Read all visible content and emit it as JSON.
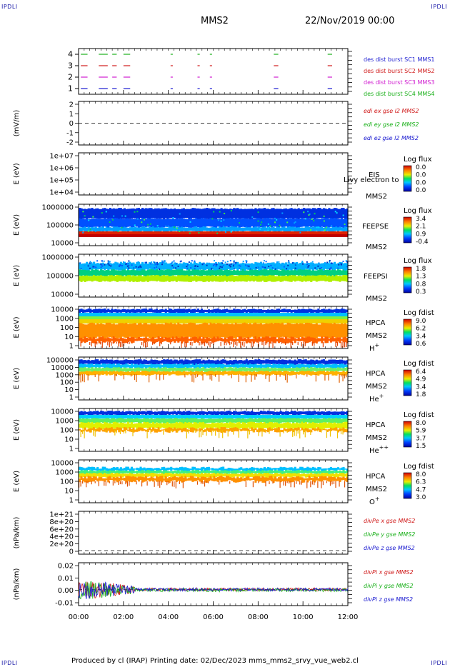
{
  "corners": {
    "tl": "IPDLI",
    "tr": "IPDLI",
    "bl": "IPDLI",
    "br": "IPDLI"
  },
  "header": {
    "spacecraft": "MMS2",
    "date": "22/Nov/2019 00:00"
  },
  "footer": {
    "text": "Produced by cl (IRAP)   Printing date: 02/Dec/2023   mms_mms2_srvy_vue_web2.cl"
  },
  "chart_data": [
    {
      "type": "scatter",
      "panel": "burst availability",
      "ylim": [
        0.5,
        4.5
      ],
      "y_ticks": [
        "1",
        "2",
        "3",
        "4"
      ],
      "series": [
        {
          "name": "des dist burst SC1 MMS1",
          "color": "#1a1ad0",
          "y": 1
        },
        {
          "name": "des dist burst SC2 MMS2",
          "color": "#d01a1a",
          "y": 3
        },
        {
          "name": "des dist burst SC3 MMS3",
          "color": "#d01ad0",
          "y": 2
        },
        {
          "name": "des dist burst SC4 MMS4",
          "color": "#1ab01a",
          "y": 4
        }
      ],
      "intervals_hours": [
        [
          0.1,
          0.4
        ],
        [
          0.9,
          1.3
        ],
        [
          1.5,
          1.7
        ],
        [
          2.0,
          2.3
        ],
        [
          4.1,
          4.2
        ],
        [
          5.3,
          5.4
        ],
        [
          5.85,
          5.95
        ],
        [
          8.7,
          8.9
        ],
        [
          11.1,
          11.3
        ]
      ]
    },
    {
      "type": "line",
      "panel": "edi",
      "ylabel": "(mV/m)",
      "ylim": [
        -2.5,
        2.5
      ],
      "y_ticks": [
        "2",
        "1",
        "0",
        "-1",
        "-2"
      ],
      "series": [
        {
          "name": "edi ex gse l2 MMS2",
          "color": "#d01a1a"
        },
        {
          "name": "edi ey gse l2 MMS2",
          "color": "#1ab01a"
        },
        {
          "name": "edi ez gse l2 MMS2",
          "color": "#1a1ad0"
        }
      ]
    },
    {
      "type": "heatmap",
      "panel": "EIS",
      "ylabel": "E (eV)",
      "y_ticks": [
        "1e+07",
        "1e+06",
        "1e+05",
        "1e+04"
      ],
      "labels": [
        "EIS",
        "MMS2"
      ],
      "overlay_text": "Livy electron to",
      "colorbar": {
        "title": "Log flux",
        "ticks": [
          "0.0",
          "0.0",
          "0.0",
          "0.0"
        ]
      }
    },
    {
      "type": "heatmap",
      "panel": "FEEPSE",
      "ylabel": "E (eV)",
      "y_ticks": [
        "1000000",
        "100000",
        "10000"
      ],
      "labels": [
        "FEEPSE",
        "MMS2"
      ],
      "colorbar": {
        "title": "Log flux",
        "ticks": [
          "3.4",
          "2.1",
          "0.9",
          "-0.4"
        ]
      }
    },
    {
      "type": "heatmap",
      "panel": "FEEPSI",
      "ylabel": "E (eV)",
      "y_ticks": [
        "1000000",
        "100000",
        "10000"
      ],
      "labels": [
        "FEEPSI",
        "MMS2"
      ],
      "colorbar": {
        "title": "Log flux",
        "ticks": [
          "1.8",
          "1.3",
          "0.8",
          "0.3"
        ]
      }
    },
    {
      "type": "heatmap",
      "panel": "HPCA H+",
      "ylabel": "E (eV)",
      "y_ticks": [
        "10000",
        "1000",
        "100",
        "10",
        "1"
      ],
      "labels": [
        "HPCA",
        "MMS2",
        "H"
      ],
      "species_sup": "+",
      "colorbar": {
        "title": "Log fdist",
        "ticks": [
          "9.0",
          "6.2",
          "3.4",
          "0.6"
        ]
      }
    },
    {
      "type": "heatmap",
      "panel": "HPCA He+",
      "ylabel": "E (eV)",
      "y_ticks": [
        "100000",
        "10000",
        "1000",
        "100",
        "10",
        "1"
      ],
      "labels": [
        "HPCA",
        "MMS2",
        "He"
      ],
      "species_sup": "+",
      "colorbar": {
        "title": "Log fdist",
        "ticks": [
          "6.4",
          "4.9",
          "3.4",
          "1.8"
        ]
      }
    },
    {
      "type": "heatmap",
      "panel": "HPCA He++",
      "ylabel": "E (eV)",
      "y_ticks": [
        "10000",
        "1000",
        "100",
        "10",
        "1"
      ],
      "labels": [
        "HPCA",
        "MMS2",
        "He"
      ],
      "species_sup": "++",
      "colorbar": {
        "title": "Log fdist",
        "ticks": [
          "8.0",
          "5.9",
          "3.7",
          "1.5"
        ]
      }
    },
    {
      "type": "heatmap",
      "panel": "HPCA O+",
      "ylabel": "E (eV)",
      "y_ticks": [
        "10000",
        "1000",
        "100",
        "10",
        "1"
      ],
      "labels": [
        "HPCA",
        "MMS2",
        "O"
      ],
      "species_sup": "+",
      "colorbar": {
        "title": "Log fdist",
        "ticks": [
          "8.0",
          "6.3",
          "4.7",
          "3.0"
        ]
      }
    },
    {
      "type": "line",
      "panel": "divPe",
      "ylabel": "(nPa/km)",
      "y_ticks": [
        "1e+21",
        "8e+20",
        "6e+20",
        "4e+20",
        "2e+20",
        "0"
      ],
      "series": [
        {
          "name": "divPe x gse MMS2",
          "color": "#d01a1a"
        },
        {
          "name": "divPe y gse MMS2",
          "color": "#1ab01a"
        },
        {
          "name": "divPe z gse MMS2",
          "color": "#1a1ad0"
        }
      ]
    },
    {
      "type": "line",
      "panel": "divPi",
      "ylabel": "(nPa/km)",
      "ylim": [
        -0.015,
        0.025
      ],
      "y_ticks": [
        "0.02",
        "0.01",
        "0.00",
        "-0.01"
      ],
      "series": [
        {
          "name": "divPi x gse MMS2",
          "color": "#d01a1a"
        },
        {
          "name": "divPi y gse MMS2",
          "color": "#1ab01a"
        },
        {
          "name": "divPi z gse MMS2",
          "color": "#1a1ad0"
        }
      ]
    }
  ],
  "x_axis": {
    "ticks": [
      "00:00",
      "02:00",
      "04:00",
      "06:00",
      "08:00",
      "10:00",
      "12:00"
    ],
    "range_hours": [
      0,
      12
    ]
  }
}
